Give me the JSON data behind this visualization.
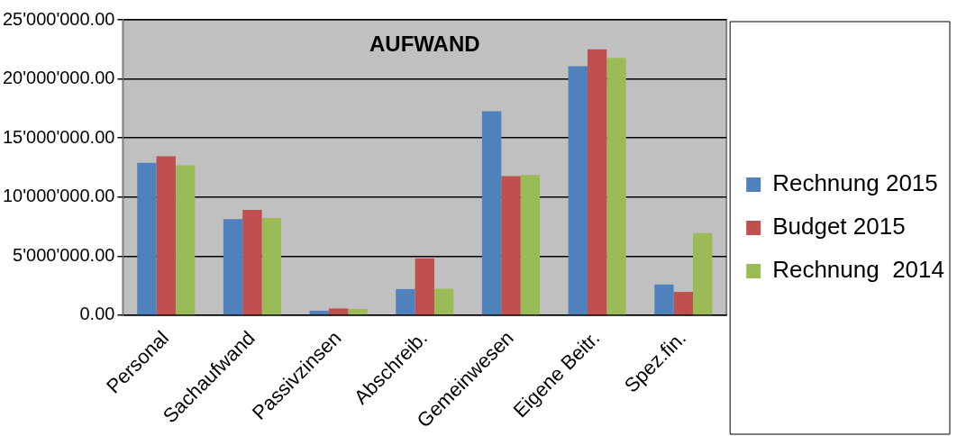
{
  "chart_data": {
    "type": "bar",
    "title": "AUFWAND",
    "categories": [
      "Personal",
      "Sachaufwand",
      "Passivzinsen",
      "Abschreib.",
      "Gemeinwesen",
      "Eigene Beitr.",
      "Spez.fin."
    ],
    "series": [
      {
        "name": "Rechnung 2015",
        "color": "#4f81bd",
        "values": [
          12900000,
          8140000,
          380000,
          2210000,
          17270000,
          21070000,
          2600000
        ]
      },
      {
        "name": "Budget 2015",
        "color": "#c0504d",
        "values": [
          13440000,
          8910000,
          570000,
          4810000,
          11780000,
          22510000,
          1970000
        ]
      },
      {
        "name": "Rechnung  2014",
        "color": "#9bbb59",
        "values": [
          12680000,
          8220000,
          520000,
          2240000,
          11860000,
          21780000,
          6970000
        ]
      }
    ],
    "ylim": [
      0,
      25000000
    ],
    "yticks": [
      {
        "value": 0,
        "label": "0.00"
      },
      {
        "value": 5000000,
        "label": "5'000'000.00"
      },
      {
        "value": 10000000,
        "label": "10'000'000.00"
      },
      {
        "value": 15000000,
        "label": "15'000'000.00"
      },
      {
        "value": 20000000,
        "label": "20'000'000.00"
      },
      {
        "value": 25000000,
        "label": "25'000'000.00"
      }
    ],
    "grid": "y",
    "legend": "right"
  }
}
